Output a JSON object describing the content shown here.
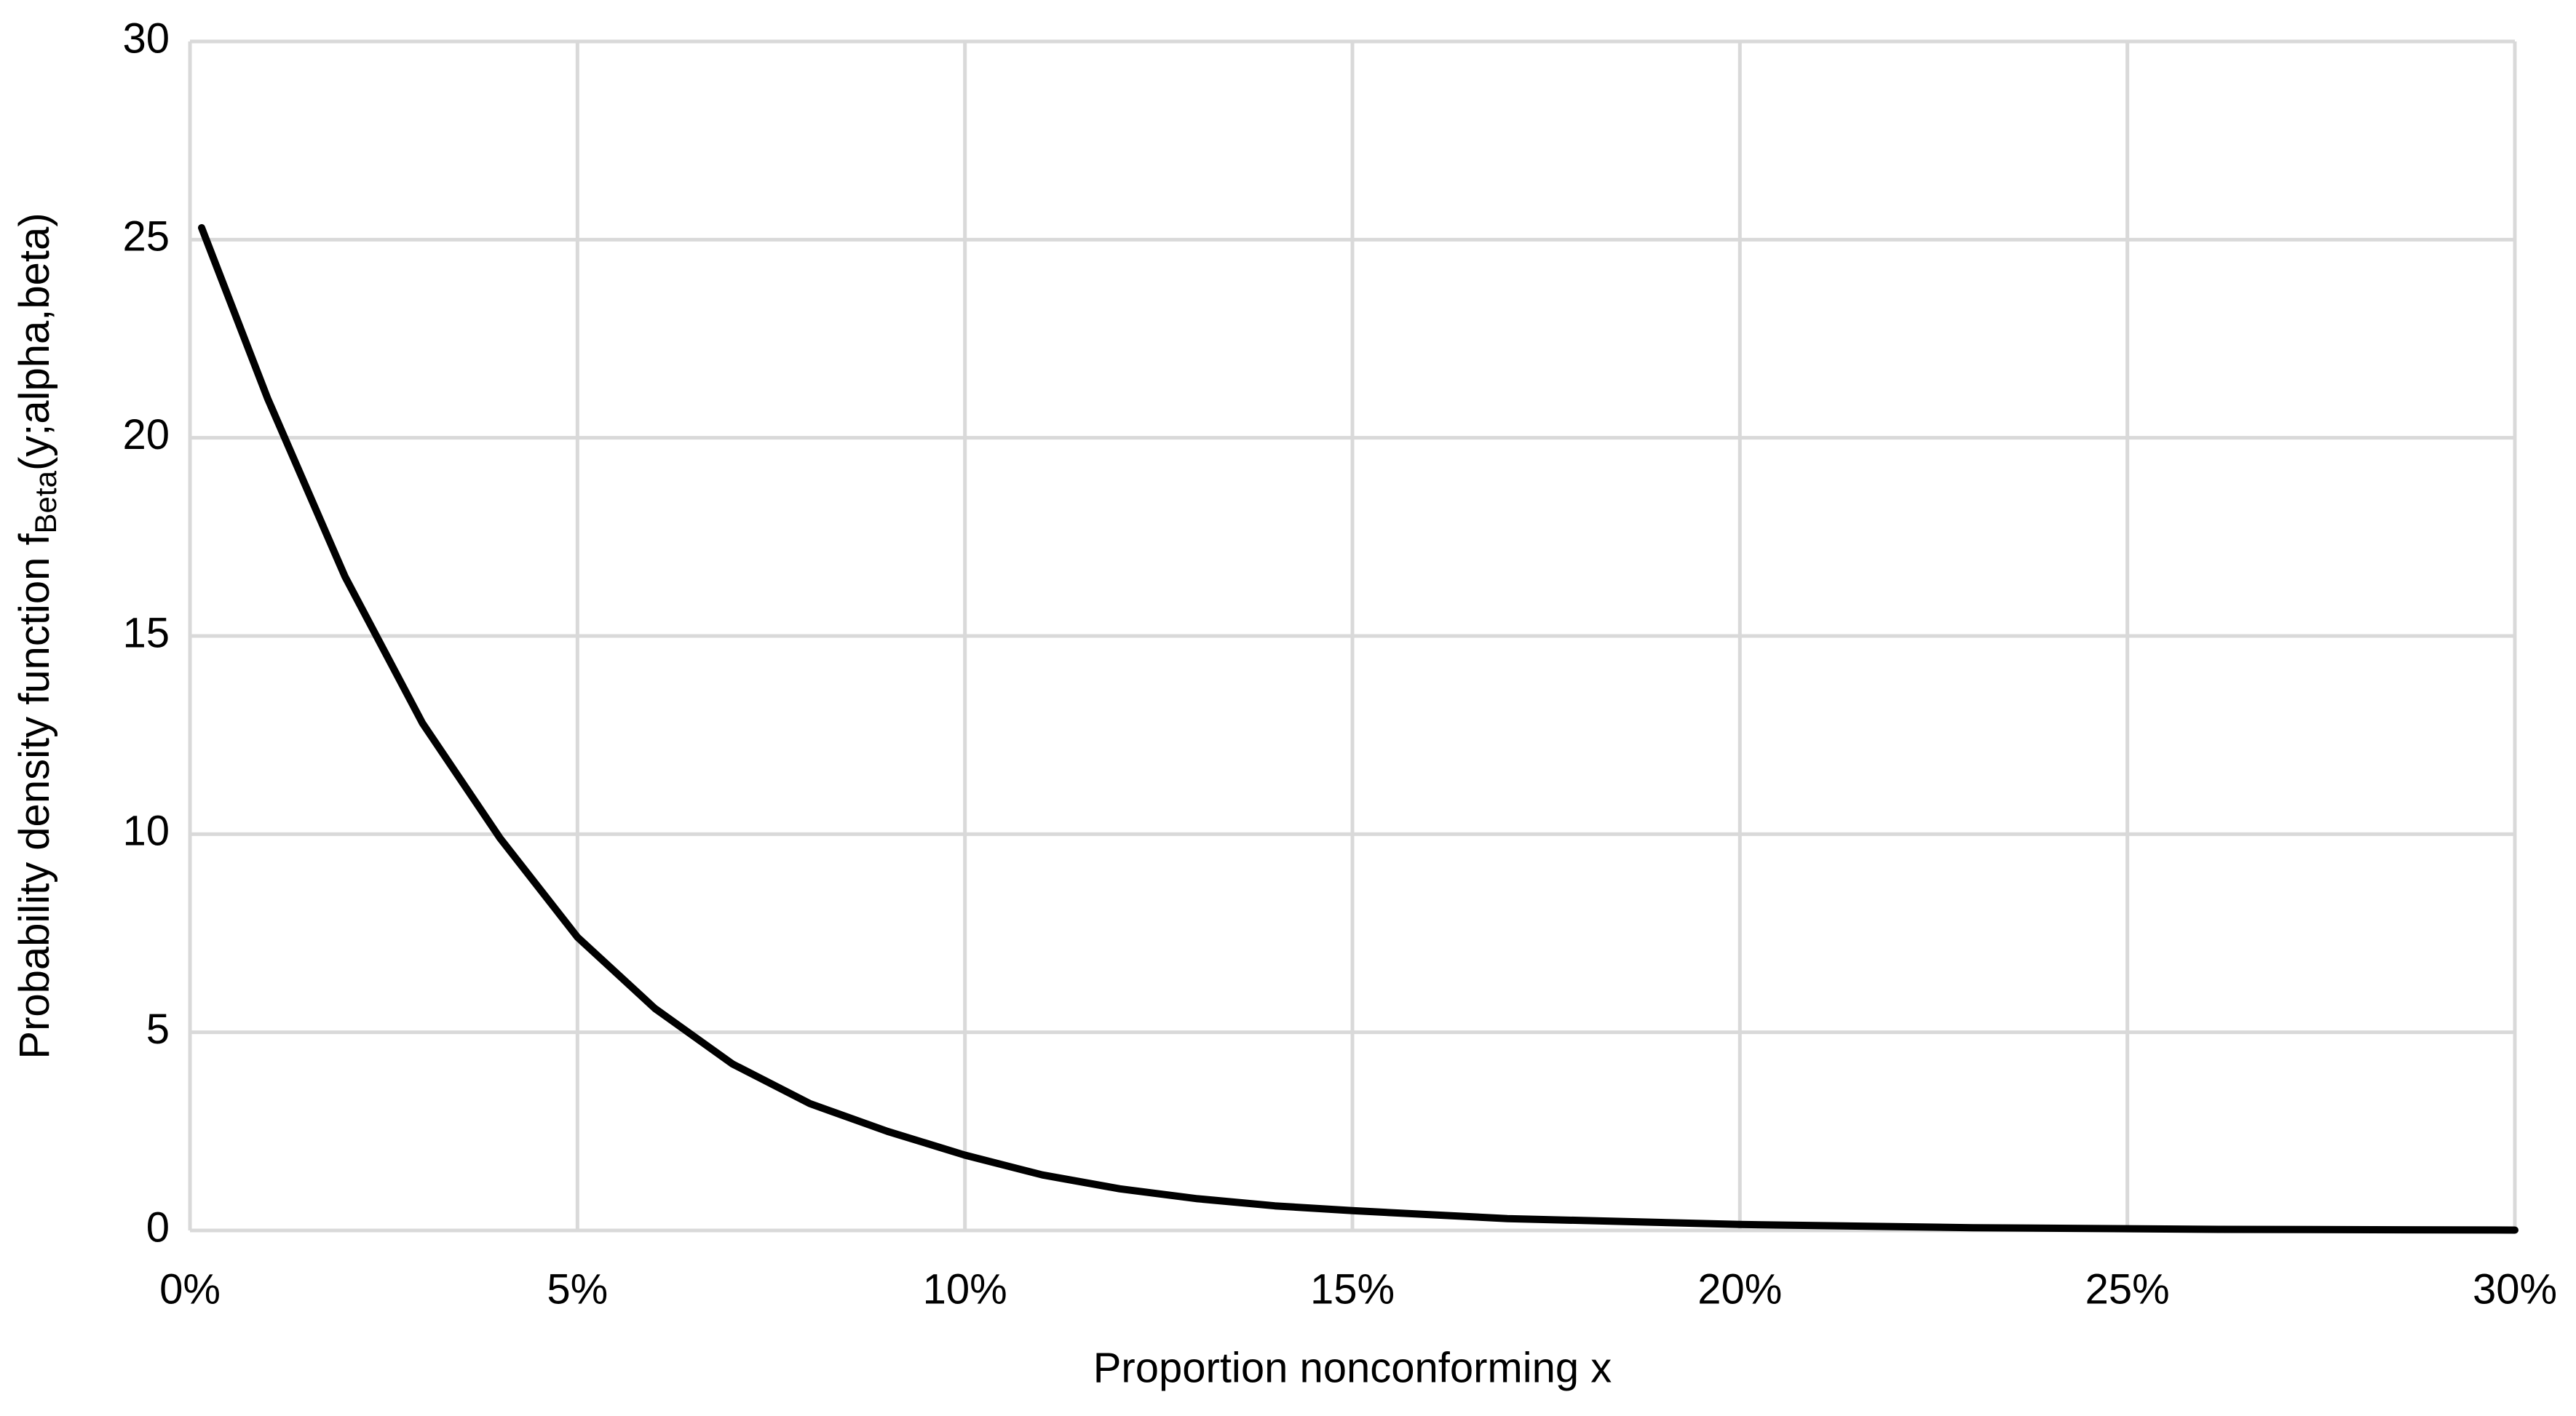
{
  "chart_data": {
    "type": "line",
    "xlabel": "Proportion nonconforming x",
    "ylabel": [
      "Probability density function f",
      "Beta",
      "(y;alpha,beta)"
    ],
    "x": [
      0.15,
      1,
      2,
      3,
      4,
      5,
      6,
      7,
      8,
      9,
      10,
      11,
      12,
      13,
      14,
      15,
      17,
      20,
      23,
      26,
      30
    ],
    "values": [
      25.3,
      21,
      16.5,
      12.8,
      9.9,
      7.4,
      5.6,
      4.2,
      3.2,
      2.5,
      1.9,
      1.4,
      1.05,
      0.8,
      0.62,
      0.5,
      0.3,
      0.15,
      0.07,
      0.03,
      0.01
    ],
    "color": "#000000",
    "xlim": [
      0,
      30
    ],
    "xticks": [
      {
        "value": 0,
        "label": "0%"
      },
      {
        "value": 5,
        "label": "5%"
      },
      {
        "value": 10,
        "label": "10%"
      },
      {
        "value": 15,
        "label": "15%"
      },
      {
        "value": 20,
        "label": "20%"
      },
      {
        "value": 25,
        "label": "25%"
      },
      {
        "value": 30,
        "label": "30%"
      }
    ],
    "ylim": [
      0,
      30
    ],
    "yticks": [
      0,
      5,
      10,
      15,
      20,
      25,
      30
    ],
    "grid": true
  }
}
